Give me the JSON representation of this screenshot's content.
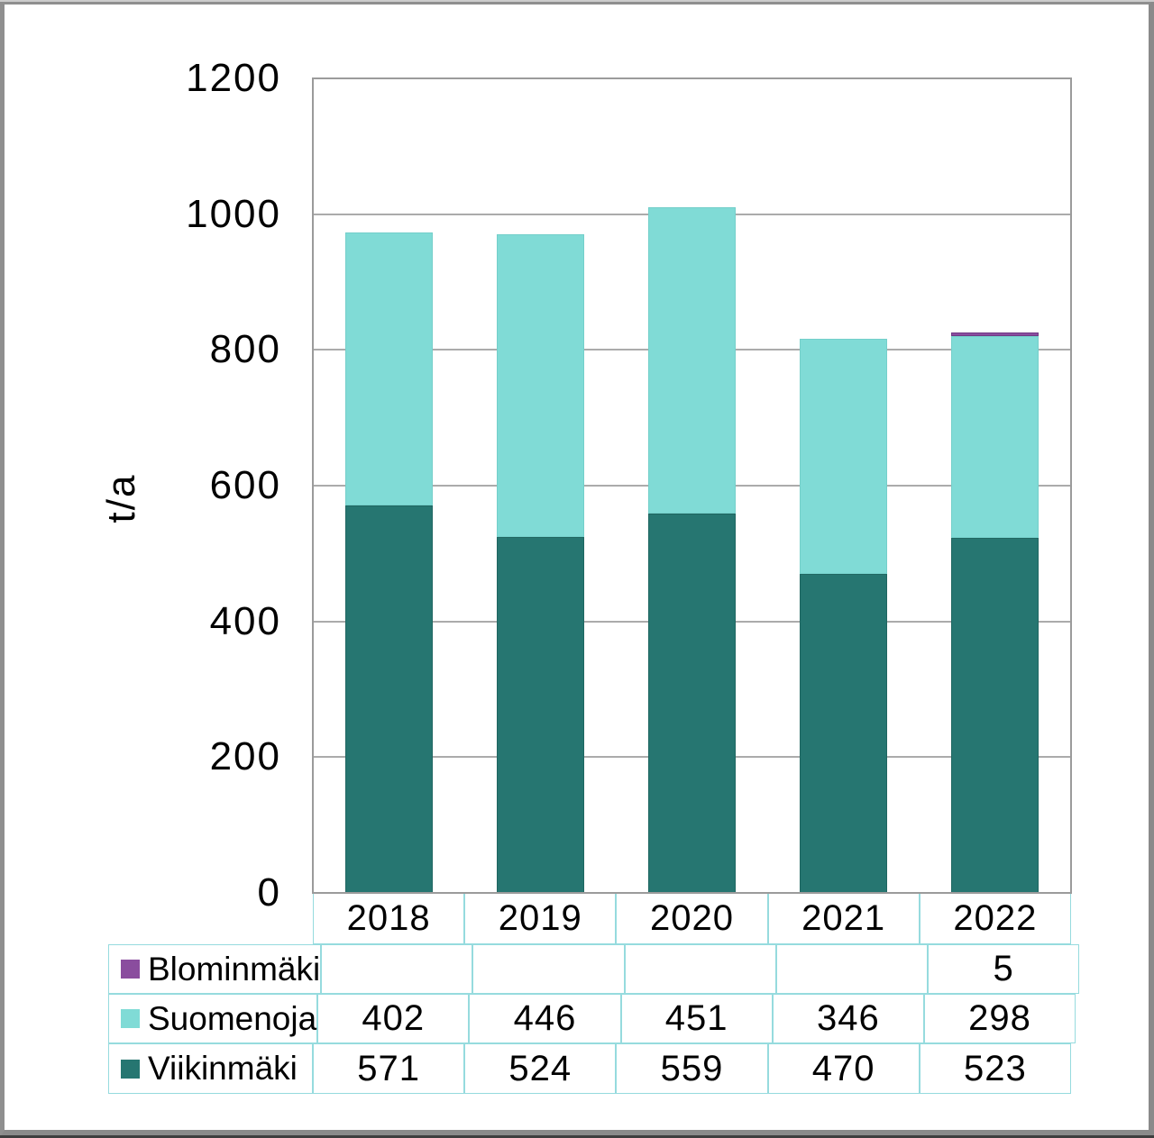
{
  "chart_data": {
    "type": "bar",
    "stacked": true,
    "title": "",
    "xlabel": "",
    "ylabel": "t/a",
    "categories": [
      "2018",
      "2019",
      "2020",
      "2021",
      "2022"
    ],
    "series": [
      {
        "name": "Blominmäki",
        "color": "#8A4D9E",
        "border_color": "#6F3A85",
        "values": [
          null,
          null,
          null,
          null,
          5
        ]
      },
      {
        "name": "Suomenoja",
        "color": "#80DBD6",
        "border_color": "#74CFCA",
        "values": [
          402,
          446,
          451,
          346,
          298
        ]
      },
      {
        "name": "Viikinmäki",
        "color": "#267671",
        "border_color": "#1F6661",
        "values": [
          571,
          524,
          559,
          470,
          523
        ]
      }
    ],
    "stack_order_bottom_to_top": [
      "Viikinmäki",
      "Suomenoja",
      "Blominmäki"
    ],
    "ylim": [
      0,
      1200
    ],
    "yticks": [
      0,
      200,
      400,
      600,
      800,
      1000,
      1200
    ],
    "grid": "horizontal-only",
    "legend_position": "table-rows-left",
    "table_empty_cell": "",
    "colors": {
      "gridline": "#ababab",
      "axis_border": "#9b9b9b",
      "table_border": "#96dbde",
      "text": "#000000",
      "background": "#ffffff",
      "frame": "#8a8a8a"
    }
  }
}
